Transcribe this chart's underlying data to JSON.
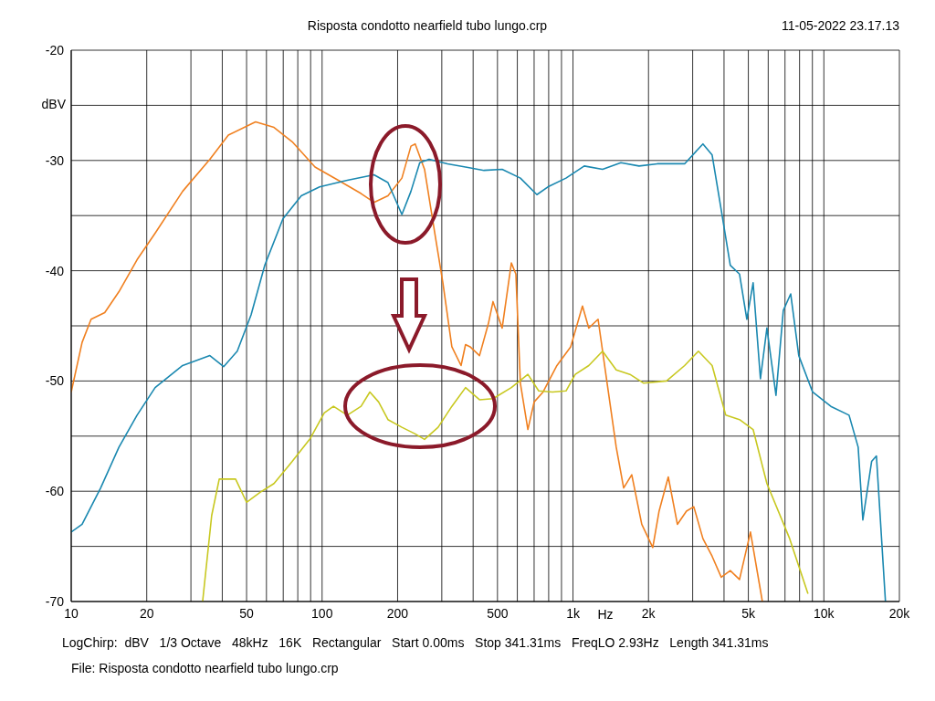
{
  "chart_data": {
    "type": "line",
    "title": "Risposta condotto nearfield tubo lungo.crp",
    "xlabel": "Hz",
    "ylabel": "dBV",
    "log": "x",
    "grid": true,
    "annotations": [
      "11-05-2022 23.17.13",
      "LogChirp:  dBV   1/3 Octave   48kHz   16K   Rectangular   Start 0.00ms   Stop 341.31ms   FreqLO 2.93Hz   Length 341.31ms",
      "File: Risposta condotto nearfield tubo lungo.crp"
    ],
    "xlim": [
      10,
      20000
    ],
    "ylim": [
      -70,
      -20
    ],
    "xticks": [
      10,
      20,
      {
        "value": 30,
        "label": null
      },
      {
        "value": 40,
        "label": null
      },
      50,
      {
        "value": 60,
        "label": null
      },
      {
        "value": 70,
        "label": null
      },
      {
        "value": 80,
        "label": null
      },
      {
        "value": 90,
        "label": null
      },
      100,
      200,
      {
        "value": 300,
        "label": null
      },
      {
        "value": 400,
        "label": null
      },
      500,
      {
        "value": 600,
        "label": null
      },
      {
        "value": 700,
        "label": null
      },
      {
        "value": 800,
        "label": null
      },
      {
        "value": 900,
        "label": null
      },
      {
        "value": 1000,
        "label": "1k"
      },
      {
        "value": 2000,
        "label": "2k"
      },
      {
        "value": 3000,
        "label": null
      },
      {
        "value": 4000,
        "label": null
      },
      {
        "value": 5000,
        "label": "5k"
      },
      {
        "value": 6000,
        "label": null
      },
      {
        "value": 7000,
        "label": null
      },
      {
        "value": 8000,
        "label": null
      },
      {
        "value": 9000,
        "label": null
      },
      {
        "value": 10000,
        "label": "10k"
      },
      {
        "value": 20000,
        "label": "20k"
      }
    ],
    "yticks": [
      -70,
      {
        "value": -65,
        "label": null
      },
      -60,
      {
        "value": -55,
        "label": null
      },
      -50,
      {
        "value": -45,
        "label": null
      },
      -40,
      {
        "value": -35,
        "label": null
      },
      -30,
      {
        "value": -25,
        "label": null
      },
      -20
    ],
    "series": [
      {
        "color": "#f08020",
        "x": [
          10,
          11.05,
          12.0,
          13.6,
          15.5,
          18.3,
          21.6,
          27.8,
          35.7,
          42.3,
          54.3,
          64.3,
          76,
          93.7,
          116,
          143,
          161,
          183,
          208,
          226,
          235,
          256,
          279,
          303,
          329,
          358,
          373,
          389,
          424,
          460,
          480,
          522,
          568,
          592,
          617,
          661,
          700,
          760,
          863,
          979,
          1091,
          1156,
          1259,
          1368,
          1487,
          1592,
          1715,
          1880,
          2080,
          2204,
          2398,
          2607,
          2833,
          3031,
          3296,
          3586,
          3899,
          4236,
          4610,
          5098,
          5455,
          5686
        ],
        "values": [
          -51.0,
          -46.5,
          -44.4,
          -43.8,
          -41.9,
          -39.0,
          -36.6,
          -32.8,
          -29.9,
          -27.7,
          -26.5,
          -27.0,
          -28.3,
          -30.6,
          -31.8,
          -33.0,
          -33.8,
          -33.2,
          -31.6,
          -28.7,
          -28.5,
          -30.8,
          -36.1,
          -41.1,
          -46.9,
          -48.6,
          -46.7,
          -46.9,
          -47.7,
          -44.8,
          -42.8,
          -45.2,
          -39.3,
          -40.3,
          -50.2,
          -54.4,
          -51.9,
          -51.0,
          -48.6,
          -46.9,
          -43.2,
          -45.2,
          -44.4,
          -50.2,
          -56.0,
          -59.7,
          -58.5,
          -63.0,
          -65.1,
          -61.8,
          -58.7,
          -63.0,
          -61.8,
          -61.4,
          -64.3,
          -65.9,
          -67.8,
          -67.2,
          -68.0,
          -63.7,
          -67.6,
          -70
        ]
      },
      {
        "color": "#1a88b0",
        "x": [
          10,
          11.05,
          13.1,
          15.5,
          18.3,
          21.6,
          27.8,
          35.7,
          40.5,
          45.9,
          52.1,
          59.1,
          69.8,
          82.6,
          97.7,
          126,
          161,
          183,
          208,
          226,
          245,
          267,
          316,
          373,
          442,
          522,
          617,
          718,
          794,
          938,
          1109,
          1312,
          1552,
          1834,
          2168,
          2786,
          3296,
          3586,
          3899,
          4236,
          4610,
          4931,
          5224,
          5587,
          5929,
          6444,
          6891,
          7375,
          7943,
          9016,
          10660,
          12600,
          13700,
          14300,
          15500,
          16200,
          17600
        ],
        "values": [
          -63.7,
          -63.0,
          -59.7,
          -56.0,
          -53.1,
          -50.6,
          -48.6,
          -47.7,
          -48.7,
          -47.3,
          -44.0,
          -39.5,
          -35.3,
          -33.2,
          -32.4,
          -31.8,
          -31.3,
          -32.0,
          -34.9,
          -32.8,
          -30.2,
          -29.9,
          -30.3,
          -30.6,
          -30.9,
          -30.8,
          -31.6,
          -33.1,
          -32.4,
          -31.6,
          -30.5,
          -30.8,
          -30.2,
          -30.5,
          -30.3,
          -30.3,
          -28.5,
          -29.5,
          -34.5,
          -39.5,
          -40.3,
          -44.4,
          -41.1,
          -49.8,
          -45.2,
          -51.3,
          -43.6,
          -42.1,
          -47.7,
          -51.0,
          -52.3,
          -53.1,
          -56.0,
          -62.6,
          -57.3,
          -56.8,
          -70
        ]
      },
      {
        "color": "#c8c820",
        "x": [
          33.4,
          36.3,
          38.9,
          45.2,
          50.0,
          56.6,
          64.3,
          76.0,
          89.8,
          102,
          111,
          126,
          143,
          155,
          168,
          183,
          208,
          235,
          256,
          290,
          329,
          373,
          424,
          480,
          568,
          661,
          730,
          828,
          938,
          1021,
          1156,
          1312,
          1487,
          1687,
          1914,
          2360,
          2786,
          3162,
          3586,
          4064,
          4610,
          5224,
          5929,
          7306,
          8643
        ],
        "values": [
          -70,
          -62.2,
          -58.9,
          -58.9,
          -61.0,
          -60.1,
          -59.3,
          -57.3,
          -55.2,
          -52.9,
          -52.3,
          -53.1,
          -52.3,
          -51.0,
          -51.9,
          -53.5,
          -54.2,
          -54.8,
          -55.3,
          -54.2,
          -52.3,
          -50.6,
          -51.7,
          -51.6,
          -50.6,
          -49.4,
          -50.9,
          -51.0,
          -50.9,
          -49.4,
          -48.6,
          -47.3,
          -49.0,
          -49.4,
          -50.2,
          -50.0,
          -48.6,
          -47.3,
          -48.6,
          -53.1,
          -53.5,
          -54.4,
          -59.3,
          -64.3,
          -69.3
        ]
      }
    ]
  }
}
